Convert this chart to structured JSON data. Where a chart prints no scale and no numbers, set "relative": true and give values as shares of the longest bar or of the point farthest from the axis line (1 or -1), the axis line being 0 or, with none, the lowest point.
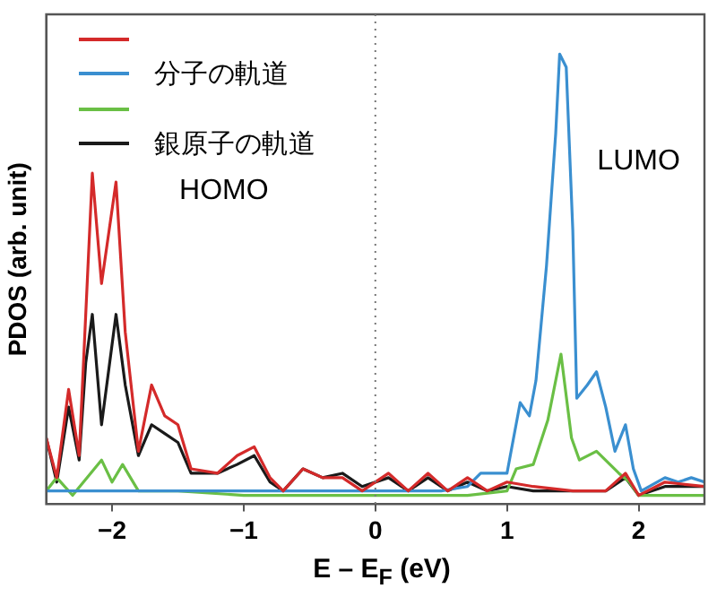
{
  "chart_data": {
    "type": "line",
    "relative": true,
    "xlabel": "E – E$_{F}$ (eV)",
    "ylabel": "PDOS (arb. unit)",
    "xlim": [
      -2.5,
      2.5
    ],
    "xticks": [
      -2,
      -1,
      0,
      1,
      2
    ],
    "tick_labels": "x",
    "legend": "top left",
    "grid": false,
    "marker": "none",
    "line_style": "solid",
    "ref_lines": [
      {
        "axis": "x",
        "value": 0,
        "color": "#777777",
        "line_style": "dotted"
      }
    ],
    "annotations": [
      "HOMO",
      "LUMO"
    ],
    "series": [
      {
        "color": "#d42a2a",
        "x": [
          -2.5,
          -2.42,
          -2.33,
          -2.25,
          -2.2,
          -2.15,
          -2.08,
          -1.97,
          -1.9,
          -1.8,
          -1.7,
          -1.6,
          -1.5,
          -1.4,
          -1.2,
          -1.05,
          -0.92,
          -0.8,
          -0.7,
          -0.55,
          -0.4,
          -0.25,
          -0.1,
          0.1,
          0.25,
          0.4,
          0.55,
          0.7,
          0.85,
          1.0,
          1.2,
          1.5,
          1.75,
          1.9,
          2.0,
          2.2,
          2.5
        ],
        "values": [
          0.13,
          0.04,
          0.24,
          0.09,
          0.41,
          0.73,
          0.48,
          0.71,
          0.37,
          0.1,
          0.25,
          0.18,
          0.16,
          0.06,
          0.05,
          0.09,
          0.11,
          0.04,
          0.01,
          0.06,
          0.04,
          0.04,
          0.01,
          0.05,
          0.01,
          0.05,
          0.01,
          0.04,
          0.01,
          0.03,
          0.02,
          0.01,
          0.01,
          0.05,
          0.0,
          0.03,
          0.02
        ]
      },
      {
        "name": "分子の軌道",
        "color": "#3a8fd0",
        "x": [
          -2.5,
          -1.5,
          -0.5,
          0.5,
          0.7,
          0.8,
          1.0,
          1.1,
          1.17,
          1.22,
          1.3,
          1.37,
          1.4,
          1.45,
          1.5,
          1.53,
          1.61,
          1.68,
          1.75,
          1.82,
          1.9,
          1.96,
          2.02,
          2.2,
          2.3,
          2.4,
          2.5
        ],
        "values": [
          0.01,
          0.01,
          0.01,
          0.01,
          0.02,
          0.05,
          0.05,
          0.21,
          0.18,
          0.26,
          0.52,
          0.82,
          1,
          0.97,
          0.6,
          0.22,
          0.25,
          0.28,
          0.2,
          0.1,
          0.16,
          0.06,
          0.01,
          0.04,
          0.03,
          0.04,
          0.03
        ]
      },
      {
        "color": "#6abf45",
        "x": [
          -2.5,
          -2.42,
          -2.3,
          -2.08,
          -2.0,
          -1.92,
          -1.8,
          -1.5,
          -1.0,
          0.0,
          0.7,
          1.0,
          1.07,
          1.2,
          1.31,
          1.41,
          1.49,
          1.55,
          1.68,
          1.85,
          1.93,
          2.0,
          2.5
        ],
        "values": [
          0.01,
          0.04,
          0.0,
          0.08,
          0.03,
          0.07,
          0.01,
          0.01,
          0.0,
          0.0,
          0.0,
          0.01,
          0.06,
          0.07,
          0.17,
          0.32,
          0.13,
          0.08,
          0.1,
          0.05,
          0.03,
          0.0,
          0.0
        ]
      },
      {
        "name": "銀原子の軌道",
        "color": "#1a1a1a",
        "x": [
          -2.5,
          -2.42,
          -2.33,
          -2.25,
          -2.2,
          -2.15,
          -2.08,
          -1.97,
          -1.9,
          -1.8,
          -1.7,
          -1.6,
          -1.5,
          -1.4,
          -1.2,
          -1.05,
          -0.92,
          -0.8,
          -0.7,
          -0.55,
          -0.4,
          -0.25,
          -0.1,
          0.1,
          0.25,
          0.4,
          0.55,
          0.7,
          0.85,
          1.0,
          1.2,
          1.5,
          1.75,
          1.9,
          2.0,
          2.2,
          2.5
        ],
        "values": [
          0.13,
          0.03,
          0.2,
          0.08,
          0.3,
          0.41,
          0.16,
          0.41,
          0.25,
          0.09,
          0.16,
          0.14,
          0.12,
          0.05,
          0.05,
          0.07,
          0.09,
          0.03,
          0.01,
          0.06,
          0.04,
          0.05,
          0.02,
          0.04,
          0.01,
          0.04,
          0.01,
          0.03,
          0.01,
          0.02,
          0.01,
          0.01,
          0.01,
          0.04,
          0.0,
          0.02,
          0.02
        ]
      }
    ]
  }
}
